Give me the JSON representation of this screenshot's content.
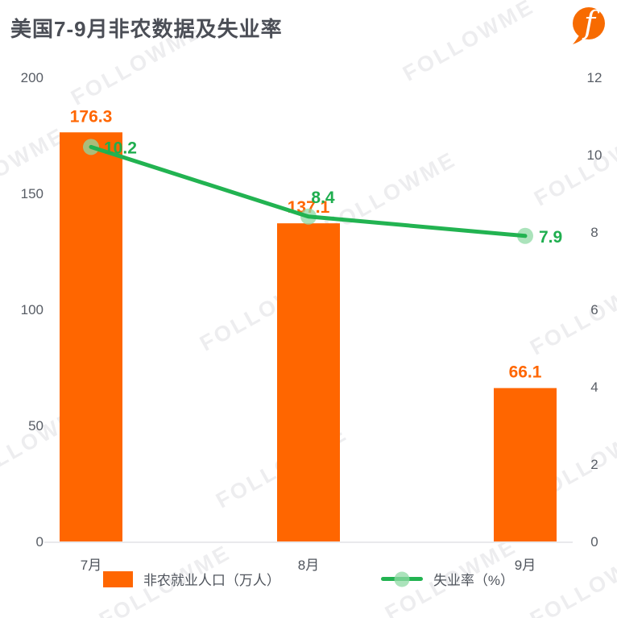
{
  "watermark": {
    "text": "FOLLOWME"
  },
  "header": {
    "title": "美国7-9月非农数据及失业率",
    "logo": "followme-logo"
  },
  "colors": {
    "bar_orange": "#FF6600",
    "line_green": "#22B351",
    "marker_green": "#8FD9A4",
    "line_label_green": "#1FAE4F",
    "title_gray": "#4B4E56",
    "axis_gray": "#585D65",
    "axis_line": "#E9E9EC",
    "logo_orange": "#F76B01"
  },
  "chart_data": {
    "type": "bar",
    "title": "美国7-9月非农数据及失业率",
    "categories": [
      "7月",
      "8月",
      "9月"
    ],
    "series": [
      {
        "name": "非农就业人口（万人）",
        "type": "bar",
        "axis": "left",
        "values": [
          176.3,
          137.1,
          66.1
        ],
        "color": "#FF6600"
      },
      {
        "name": "失业率（%）",
        "type": "line",
        "axis": "right",
        "values": [
          10.2,
          8.4,
          7.9
        ],
        "color": "#22B351",
        "marker_color": "#8FD9A4",
        "label_color": "#1FAE4F"
      }
    ],
    "left_axis": {
      "min": 0,
      "max": 200,
      "step": 50,
      "ticks": [
        200,
        150,
        100,
        50,
        0
      ]
    },
    "right_axis": {
      "min": 0,
      "max": 12,
      "step": 2,
      "ticks": [
        12,
        10,
        8,
        6,
        4,
        2,
        0
      ]
    },
    "grid": false,
    "legend_position": "bottom"
  },
  "legend": {
    "bar_label": "非农就业人口（万人）",
    "line_label": "失业率（%）"
  }
}
